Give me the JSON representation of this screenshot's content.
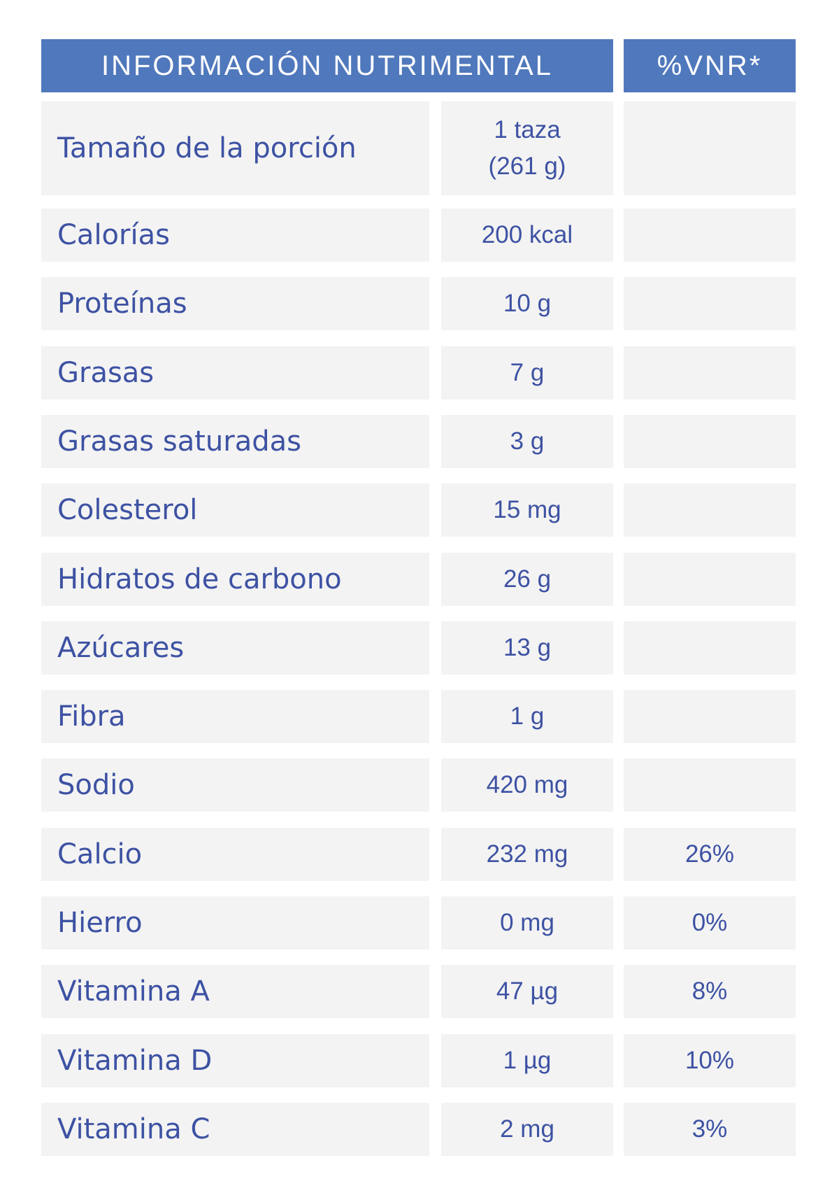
{
  "header": {
    "title": "INFORMACIÓN NUTRIMENTAL",
    "vnr": "%VNR*"
  },
  "colors": {
    "header": "#5078bc",
    "text": "#3d52a3",
    "cell": "#f3f3f3"
  },
  "rows": [
    {
      "label": "Tamaño de la porción",
      "value": "1 taza\n(261 g)",
      "vnr": ""
    },
    {
      "label": "Calorías",
      "value": "200 kcal",
      "vnr": ""
    },
    {
      "label": "Proteínas",
      "value": "10 g",
      "vnr": ""
    },
    {
      "label": "Grasas",
      "value": "7 g",
      "vnr": ""
    },
    {
      "label": "Grasas saturadas",
      "value": "3 g",
      "vnr": ""
    },
    {
      "label": "Colesterol",
      "value": "15 mg",
      "vnr": ""
    },
    {
      "label": "Hidratos de carbono",
      "value": "26 g",
      "vnr": ""
    },
    {
      "label": "Azúcares",
      "value": "13 g",
      "vnr": ""
    },
    {
      "label": "Fibra",
      "value": "1 g",
      "vnr": ""
    },
    {
      "label": "Sodio",
      "value": "420 mg",
      "vnr": ""
    },
    {
      "label": "Calcio",
      "value": "232 mg",
      "vnr": "26%"
    },
    {
      "label": "Hierro",
      "value": "0 mg",
      "vnr": "0%"
    },
    {
      "label": "Vitamina A",
      "value": "47 µg",
      "vnr": "8%"
    },
    {
      "label": "Vitamina D",
      "value": "1 µg",
      "vnr": "10%"
    },
    {
      "label": "Vitamina C",
      "value": "2 mg",
      "vnr": "3%"
    }
  ]
}
